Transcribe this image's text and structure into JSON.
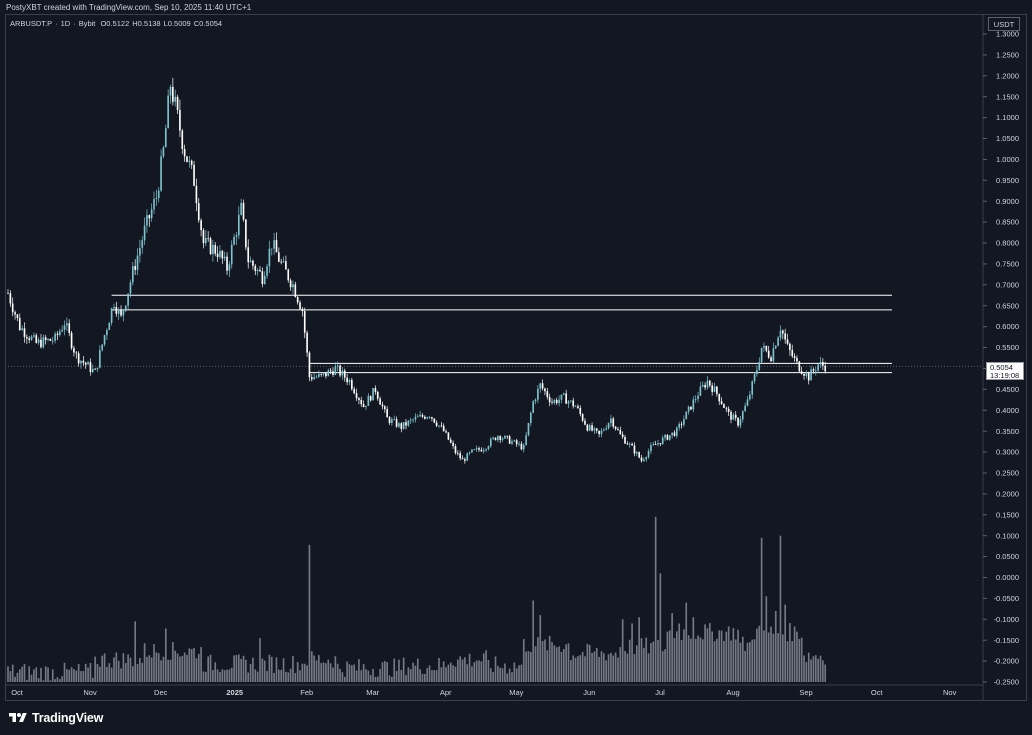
{
  "header": {
    "credit": "PostyXBT created with TradingView.com, Sep 10, 2025 11:40 UTC+1"
  },
  "symbol": {
    "name": "ARBUSDT.P",
    "interval": "1D",
    "exchange": "Bybit",
    "open": "O0.5122",
    "high": "H0.5138",
    "low": "L0.5009",
    "close": "C0.5054"
  },
  "price_axis": {
    "currency": "USDT",
    "last_price": "0.5054",
    "countdown": "13:19:08"
  },
  "footer": {
    "brand": "TradingView"
  },
  "colors": {
    "background": "#131722",
    "bull_candle": "#7fc3cf",
    "bear_candle": "#ffffff",
    "volume": "#7f848e",
    "levels": "#ffffff"
  },
  "chart_data": {
    "type": "candlestick",
    "title": "",
    "ylabel": "USDT",
    "xlabel": "",
    "ylim": [
      -0.25,
      1.3
    ],
    "yticks": [
      "1.3000",
      "1.2500",
      "1.2000",
      "1.1500",
      "1.1000",
      "1.0500",
      "1.0000",
      "0.9500",
      "0.9000",
      "0.8500",
      "0.8000",
      "0.7500",
      "0.7000",
      "0.6500",
      "0.6000",
      "0.5500",
      "0.5000",
      "0.4500",
      "0.4000",
      "0.3500",
      "0.3000",
      "0.2500",
      "0.2000",
      "0.1500",
      "0.1000",
      "0.0500",
      "0.0000",
      "-0.0500",
      "-0.1000",
      "-0.1500",
      "-0.2000",
      "-0.2500"
    ],
    "xticks": [
      {
        "label": "Oct",
        "date": "2024-10-01"
      },
      {
        "label": "Nov",
        "date": "2024-11-01"
      },
      {
        "label": "Dec",
        "date": "2024-12-01"
      },
      {
        "label": "2025",
        "date": "2025-01-01",
        "bold": true
      },
      {
        "label": "Feb",
        "date": "2025-02-01"
      },
      {
        "label": "Mar",
        "date": "2025-03-01"
      },
      {
        "label": "Apr",
        "date": "2025-04-01"
      },
      {
        "label": "May",
        "date": "2025-05-01"
      },
      {
        "label": "Jun",
        "date": "2025-06-01"
      },
      {
        "label": "Jul",
        "date": "2025-07-01"
      },
      {
        "label": "Aug",
        "date": "2025-08-01"
      },
      {
        "label": "Sep",
        "date": "2025-09-01"
      },
      {
        "label": "Oct",
        "date": "2025-10-01"
      },
      {
        "label": "Nov",
        "date": "2025-11-01"
      }
    ],
    "x_start": "2024-09-28",
    "x_end": "2025-11-16",
    "series_start": "2024-09-28",
    "series_end": "2025-09-10",
    "close_path": [
      {
        "date": "2024-09-28",
        "close": 0.68
      },
      {
        "date": "2024-10-03",
        "close": 0.6
      },
      {
        "date": "2024-10-10",
        "close": 0.56
      },
      {
        "date": "2024-10-18",
        "close": 0.57
      },
      {
        "date": "2024-10-22",
        "close": 0.61
      },
      {
        "date": "2024-10-27",
        "close": 0.53
      },
      {
        "date": "2024-11-04",
        "close": 0.49
      },
      {
        "date": "2024-11-08",
        "close": 0.58
      },
      {
        "date": "2024-11-12",
        "close": 0.66
      },
      {
        "date": "2024-11-15",
        "close": 0.62
      },
      {
        "date": "2024-11-20",
        "close": 0.73
      },
      {
        "date": "2024-11-25",
        "close": 0.83
      },
      {
        "date": "2024-11-30",
        "close": 0.91
      },
      {
        "date": "2024-12-03",
        "close": 1.02
      },
      {
        "date": "2024-12-06",
        "close": 1.18
      },
      {
        "date": "2024-12-09",
        "close": 1.1
      },
      {
        "date": "2024-12-12",
        "close": 1.02
      },
      {
        "date": "2024-12-16",
        "close": 0.95
      },
      {
        "date": "2024-12-20",
        "close": 0.8
      },
      {
        "date": "2024-12-26",
        "close": 0.78
      },
      {
        "date": "2024-12-30",
        "close": 0.74
      },
      {
        "date": "2025-01-05",
        "close": 0.88
      },
      {
        "date": "2025-01-08",
        "close": 0.76
      },
      {
        "date": "2025-01-14",
        "close": 0.72
      },
      {
        "date": "2025-01-18",
        "close": 0.8
      },
      {
        "date": "2025-01-22",
        "close": 0.75
      },
      {
        "date": "2025-01-27",
        "close": 0.7
      },
      {
        "date": "2025-01-31",
        "close": 0.64
      },
      {
        "date": "2025-02-03",
        "close": 0.48
      },
      {
        "date": "2025-02-08",
        "close": 0.48
      },
      {
        "date": "2025-02-14",
        "close": 0.5
      },
      {
        "date": "2025-02-20",
        "close": 0.47
      },
      {
        "date": "2025-02-26",
        "close": 0.41
      },
      {
        "date": "2025-03-03",
        "close": 0.45
      },
      {
        "date": "2025-03-08",
        "close": 0.38
      },
      {
        "date": "2025-03-14",
        "close": 0.36
      },
      {
        "date": "2025-03-20",
        "close": 0.38
      },
      {
        "date": "2025-03-26",
        "close": 0.39
      },
      {
        "date": "2025-04-01",
        "close": 0.35
      },
      {
        "date": "2025-04-06",
        "close": 0.3
      },
      {
        "date": "2025-04-09",
        "close": 0.28
      },
      {
        "date": "2025-04-13",
        "close": 0.3
      },
      {
        "date": "2025-04-18",
        "close": 0.31
      },
      {
        "date": "2025-04-24",
        "close": 0.34
      },
      {
        "date": "2025-04-28",
        "close": 0.33
      },
      {
        "date": "2025-05-05",
        "close": 0.31
      },
      {
        "date": "2025-05-09",
        "close": 0.42
      },
      {
        "date": "2025-05-12",
        "close": 0.46
      },
      {
        "date": "2025-05-17",
        "close": 0.42
      },
      {
        "date": "2025-05-22",
        "close": 0.43
      },
      {
        "date": "2025-05-27",
        "close": 0.41
      },
      {
        "date": "2025-06-01",
        "close": 0.36
      },
      {
        "date": "2025-06-06",
        "close": 0.34
      },
      {
        "date": "2025-06-11",
        "close": 0.38
      },
      {
        "date": "2025-06-15",
        "close": 0.34
      },
      {
        "date": "2025-06-20",
        "close": 0.31
      },
      {
        "date": "2025-06-24",
        "close": 0.28
      },
      {
        "date": "2025-06-28",
        "close": 0.31
      },
      {
        "date": "2025-07-03",
        "close": 0.33
      },
      {
        "date": "2025-07-09",
        "close": 0.35
      },
      {
        "date": "2025-07-14",
        "close": 0.4
      },
      {
        "date": "2025-07-18",
        "close": 0.44
      },
      {
        "date": "2025-07-22",
        "close": 0.47
      },
      {
        "date": "2025-07-26",
        "close": 0.44
      },
      {
        "date": "2025-07-31",
        "close": 0.39
      },
      {
        "date": "2025-08-04",
        "close": 0.37
      },
      {
        "date": "2025-08-08",
        "close": 0.42
      },
      {
        "date": "2025-08-12",
        "close": 0.5
      },
      {
        "date": "2025-08-14",
        "close": 0.55
      },
      {
        "date": "2025-08-18",
        "close": 0.53
      },
      {
        "date": "2025-08-22",
        "close": 0.6
      },
      {
        "date": "2025-08-25",
        "close": 0.55
      },
      {
        "date": "2025-08-29",
        "close": 0.51
      },
      {
        "date": "2025-09-03",
        "close": 0.48
      },
      {
        "date": "2025-09-07",
        "close": 0.51
      },
      {
        "date": "2025-09-10",
        "close": 0.5054
      }
    ],
    "resistance_zones": [
      {
        "top": 0.675,
        "bottom": 0.64,
        "start": "2024-11-11"
      },
      {
        "top": 0.512,
        "bottom": 0.49,
        "start": "2025-02-03"
      }
    ],
    "volume": {
      "axis_base": -0.25,
      "levels": [
        {
          "start": "2024-09-28",
          "level": -0.235
        },
        {
          "start": "2024-11-04",
          "level": -0.205
        },
        {
          "start": "2024-11-25",
          "level": -0.185
        },
        {
          "start": "2024-12-20",
          "level": -0.215
        },
        {
          "start": "2025-01-15",
          "level": -0.215
        },
        {
          "start": "2025-02-01",
          "level": -0.205
        },
        {
          "start": "2025-02-15",
          "level": -0.225
        },
        {
          "start": "2025-03-15",
          "level": -0.22
        },
        {
          "start": "2025-04-03",
          "level": -0.205
        },
        {
          "start": "2025-04-20",
          "level": -0.22
        },
        {
          "start": "2025-05-05",
          "level": -0.17
        },
        {
          "start": "2025-05-25",
          "level": -0.19
        },
        {
          "start": "2025-06-15",
          "level": -0.175
        },
        {
          "start": "2025-07-05",
          "level": -0.14
        },
        {
          "start": "2025-08-05",
          "level": -0.17
        },
        {
          "start": "2025-08-10",
          "level": -0.14
        },
        {
          "start": "2025-09-01",
          "level": -0.195
        }
      ],
      "spikes": [
        {
          "date": "2024-11-21",
          "level": -0.105
        },
        {
          "date": "2024-12-04",
          "level": -0.122
        },
        {
          "date": "2025-01-13",
          "level": -0.145
        },
        {
          "date": "2025-02-03",
          "level": 0.078
        },
        {
          "date": "2025-05-09",
          "level": -0.055
        },
        {
          "date": "2025-05-12",
          "level": -0.09
        },
        {
          "date": "2025-06-16",
          "level": -0.1
        },
        {
          "date": "2025-06-20",
          "level": -0.11
        },
        {
          "date": "2025-06-23",
          "level": -0.095
        },
        {
          "date": "2025-06-30",
          "level": 0.145
        },
        {
          "date": "2025-07-02",
          "level": 0.01
        },
        {
          "date": "2025-07-07",
          "level": -0.085
        },
        {
          "date": "2025-07-10",
          "level": -0.11
        },
        {
          "date": "2025-07-13",
          "level": -0.06
        },
        {
          "date": "2025-07-16",
          "level": -0.095
        },
        {
          "date": "2025-08-14",
          "level": 0.095
        },
        {
          "date": "2025-08-16",
          "level": -0.045
        },
        {
          "date": "2025-08-20",
          "level": -0.08
        },
        {
          "date": "2025-08-22",
          "level": 0.1
        },
        {
          "date": "2025-08-24",
          "level": -0.065
        }
      ]
    },
    "grid": false,
    "legend": "none"
  }
}
